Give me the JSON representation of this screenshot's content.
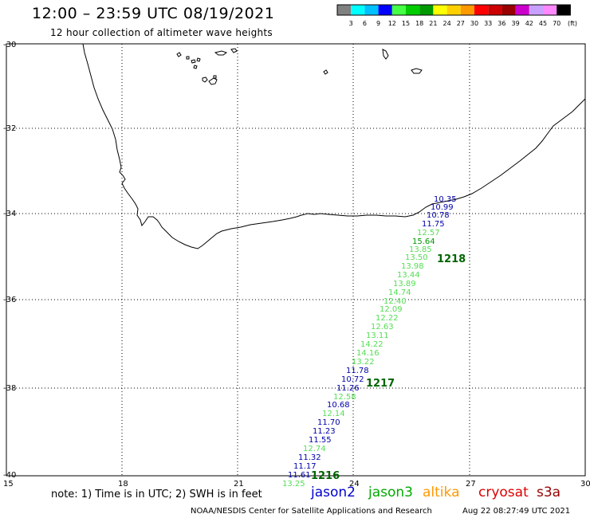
{
  "header": {
    "title": "12:00 – 23:59 UTC 08/19/2021",
    "subtitle": "12 hour collection of altimeter wave heights"
  },
  "colorbar": {
    "unit": "(ft)",
    "colors": [
      "#808080",
      "#00ffff",
      "#00c0ff",
      "#0000ff",
      "#44ff44",
      "#00cc00",
      "#009900",
      "#ffff00",
      "#ffd000",
      "#ff9900",
      "#ff0000",
      "#cc0000",
      "#990000",
      "#cc00cc",
      "#c8a0ff",
      "#ff88ff",
      "#000000"
    ],
    "labels": [
      "3",
      "6",
      "9",
      "12",
      "15",
      "18",
      "21",
      "24",
      "27",
      "30",
      "33",
      "36",
      "39",
      "42",
      "45",
      "70"
    ]
  },
  "axes": {
    "lat_labels": [
      "-30",
      "-32",
      "-34",
      "-36",
      "-38",
      "-40"
    ],
    "lon_labels": [
      "15",
      "18",
      "21",
      "24",
      "27",
      "30"
    ]
  },
  "tracks": [
    {
      "id": "1218",
      "satellite": "jason3",
      "color": "#006400"
    },
    {
      "id": "1217",
      "satellite": "jason3",
      "color": "#006400"
    },
    {
      "id": "1216",
      "satellite": "jason3",
      "color": "#006400"
    }
  ],
  "swh_values": [
    {
      "value": "10.35",
      "color": "#0000aa"
    },
    {
      "value": "10.99",
      "color": "#0000aa"
    },
    {
      "value": "10.78",
      "color": "#0000aa"
    },
    {
      "value": "11.75",
      "color": "#0000aa"
    },
    {
      "value": "12.57",
      "color": "#55dd55"
    },
    {
      "value": "15.64",
      "color": "#009900"
    },
    {
      "value": "13.85",
      "color": "#55dd55"
    },
    {
      "value": "13.50",
      "color": "#55dd55"
    },
    {
      "value": "13.98",
      "color": "#55dd55"
    },
    {
      "value": "13.44",
      "color": "#55dd55"
    },
    {
      "value": "13.89",
      "color": "#55dd55"
    },
    {
      "value": "14.74",
      "color": "#55dd55"
    },
    {
      "value": "12.40",
      "color": "#55dd55"
    },
    {
      "value": "12.09",
      "color": "#55dd55"
    },
    {
      "value": "12.22",
      "color": "#55dd55"
    },
    {
      "value": "12.63",
      "color": "#55dd55"
    },
    {
      "value": "13.11",
      "color": "#55dd55"
    },
    {
      "value": "14.22",
      "color": "#55dd55"
    },
    {
      "value": "14.16",
      "color": "#55dd55"
    },
    {
      "value": "13.22",
      "color": "#55dd55"
    },
    {
      "value": "11.78",
      "color": "#0000aa"
    },
    {
      "value": "10.72",
      "color": "#0000aa"
    },
    {
      "value": "11.26",
      "color": "#0000aa"
    },
    {
      "value": "12.58",
      "color": "#55dd55"
    },
    {
      "value": "10.68",
      "color": "#0000aa"
    },
    {
      "value": "12.14",
      "color": "#55dd55"
    },
    {
      "value": "11.70",
      "color": "#0000aa"
    },
    {
      "value": "11.23",
      "color": "#0000aa"
    },
    {
      "value": "11.55",
      "color": "#0000aa"
    },
    {
      "value": "12.74",
      "color": "#55dd55"
    },
    {
      "value": "11.32",
      "color": "#0000aa"
    },
    {
      "value": "11.17",
      "color": "#0000aa"
    },
    {
      "value": "11.61",
      "color": "#0000aa"
    },
    {
      "value": "13.25",
      "color": "#55dd55"
    }
  ],
  "footer": {
    "note": "note:  1) Time is in UTC;  2) SWH is in feet",
    "legend": [
      {
        "label": "jason2",
        "color": "#0000cc"
      },
      {
        "label": "jason3",
        "color": "#00aa00"
      },
      {
        "label": "altika",
        "color": "#ff9900"
      },
      {
        "label": "cryosat",
        "color": "#dd0000"
      },
      {
        "label": "s3a",
        "color": "#990000"
      }
    ],
    "credit": "NOAA/NESDIS Center for Satellite Applications and Research",
    "timestamp": "Aug 22 08:27:49 UTC 2021"
  }
}
